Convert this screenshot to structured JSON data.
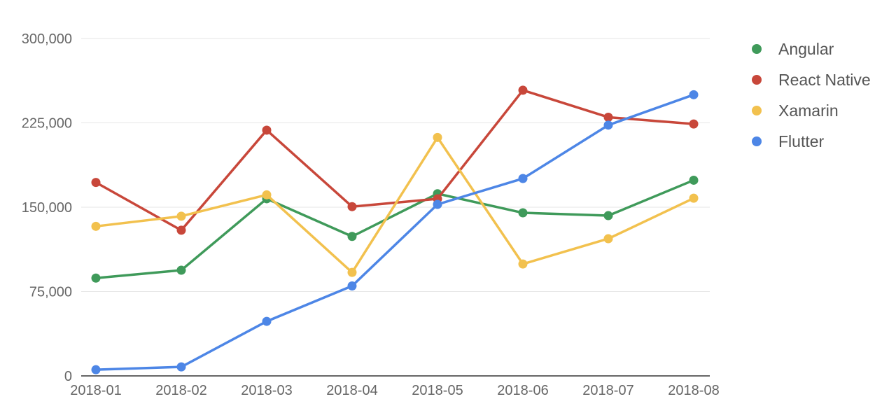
{
  "chart_data": {
    "type": "line",
    "title": "",
    "xlabel": "",
    "ylabel": "",
    "categories": [
      "2018-01",
      "2018-02",
      "2018-03",
      "2018-04",
      "2018-05",
      "2018-06",
      "2018-07",
      "2018-08"
    ],
    "ylim": [
      0,
      300000
    ],
    "yticks": [
      0,
      75000,
      150000,
      225000,
      300000
    ],
    "ytick_labels": [
      "0",
      "75,000",
      "150,000",
      "225,000",
      "300,000"
    ],
    "grid": true,
    "legend_position": "right",
    "markers": true,
    "series": [
      {
        "name": "Angular",
        "color": "#3f9a5a",
        "values": [
          87000,
          94000,
          157500,
          124000,
          162000,
          145000,
          142500,
          174000
        ]
      },
      {
        "name": "React Native",
        "color": "#c8473a",
        "values": [
          172000,
          129500,
          218500,
          150500,
          157500,
          254000,
          230000,
          224000
        ]
      },
      {
        "name": "Xamarin",
        "color": "#f2c14e",
        "values": [
          133000,
          142000,
          161000,
          92000,
          212000,
          99500,
          122000,
          158000
        ]
      },
      {
        "name": "Flutter",
        "color": "#4d86e6",
        "values": [
          5500,
          8000,
          48500,
          80000,
          152500,
          175500,
          223000,
          250000
        ]
      }
    ]
  }
}
